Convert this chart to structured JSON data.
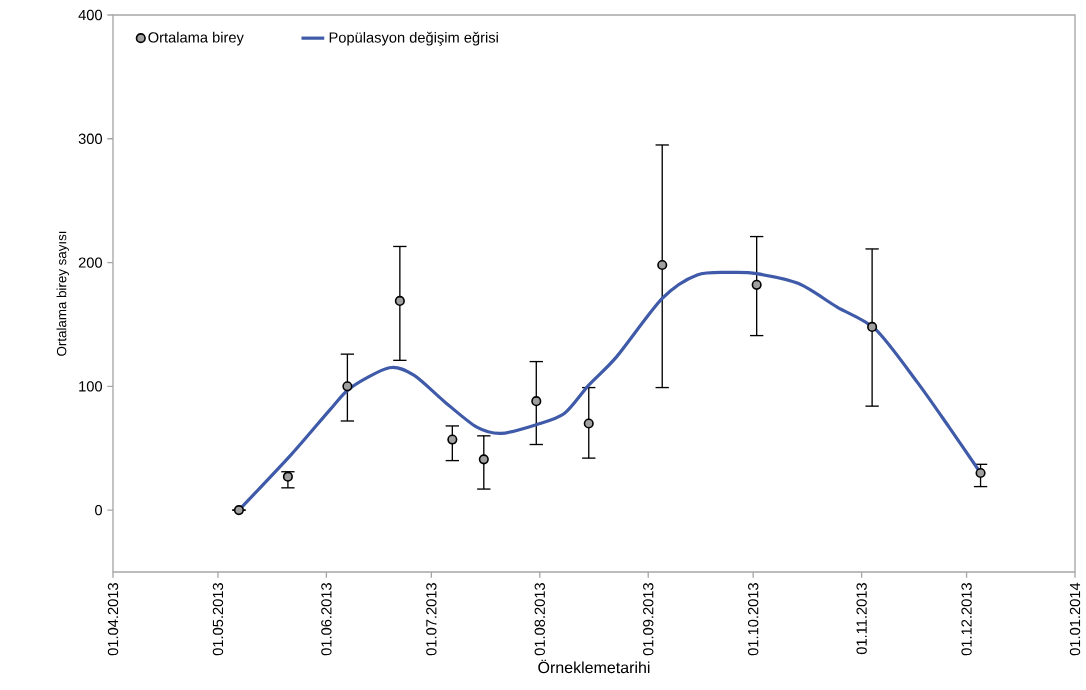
{
  "chart_data": {
    "type": "scatter",
    "xlabel": "Örneklemetarihi",
    "ylabel": "Ortalama birey sayısı",
    "xlim": [
      "2013-04-01",
      "2014-01-01"
    ],
    "xticks": [
      {
        "value": "2013-04-01",
        "label": "01.04.2013"
      },
      {
        "value": "2013-05-01",
        "label": "01.05.2013"
      },
      {
        "value": "2013-06-01",
        "label": "01.06.2013"
      },
      {
        "value": "2013-07-01",
        "label": "01.07.2013"
      },
      {
        "value": "2013-08-01",
        "label": "01.08.2013"
      },
      {
        "value": "2013-09-01",
        "label": "01.09.2013"
      },
      {
        "value": "2013-10-01",
        "label": "01.10.2013"
      },
      {
        "value": "2013-11-01",
        "label": "01.11.2013"
      },
      {
        "value": "2013-12-01",
        "label": "01.12.2013"
      },
      {
        "value": "2014-01-01",
        "label": "01.01.2014"
      }
    ],
    "ylim": [
      -50,
      400
    ],
    "yticks": [
      0,
      100,
      200,
      300,
      400
    ],
    "legend": "top left",
    "series": [
      {
        "name": "Ortalama birey",
        "marker": "circle",
        "color": "#a0a0a0",
        "x": [
          "2013-05-07",
          "2013-05-21",
          "2013-06-07",
          "2013-06-22",
          "2013-07-07",
          "2013-07-16",
          "2013-07-31",
          "2013-08-15",
          "2013-09-05",
          "2013-10-02",
          "2013-11-04",
          "2013-12-05"
        ],
        "values": [
          0,
          27,
          100,
          169,
          57,
          41,
          88,
          70,
          198,
          182,
          148,
          30
        ],
        "errors": [
          null,
          [
            18,
            31
          ],
          [
            72,
            126
          ],
          [
            121,
            213
          ],
          [
            40,
            68
          ],
          [
            17,
            60
          ],
          [
            53,
            120
          ],
          [
            42,
            99
          ],
          [
            99,
            295
          ],
          [
            141,
            221
          ],
          [
            84,
            211
          ],
          [
            19,
            37
          ]
        ]
      },
      {
        "name": "Popülasyon değişim eğrisi",
        "type": "line",
        "marker": "none",
        "color": "#3f5aa8",
        "x": [
          "2013-05-07",
          "2013-05-22",
          "2013-06-02",
          "2013-06-08",
          "2013-06-19",
          "2013-06-26",
          "2013-07-05",
          "2013-07-14",
          "2013-07-21",
          "2013-07-31",
          "2013-08-08",
          "2013-08-15",
          "2013-08-23",
          "2013-09-05",
          "2013-09-15",
          "2013-09-25",
          "2013-10-02",
          "2013-10-14",
          "2013-10-25",
          "2013-11-05",
          "2013-11-17",
          "2013-11-26",
          "2013-12-05"
        ],
        "values": [
          0,
          45,
          81,
          99,
          115,
          109,
          87,
          67,
          62,
          69,
          78,
          101,
          124,
          171,
          190,
          192,
          191,
          183,
          164,
          146,
          103,
          67,
          30
        ]
      }
    ]
  }
}
